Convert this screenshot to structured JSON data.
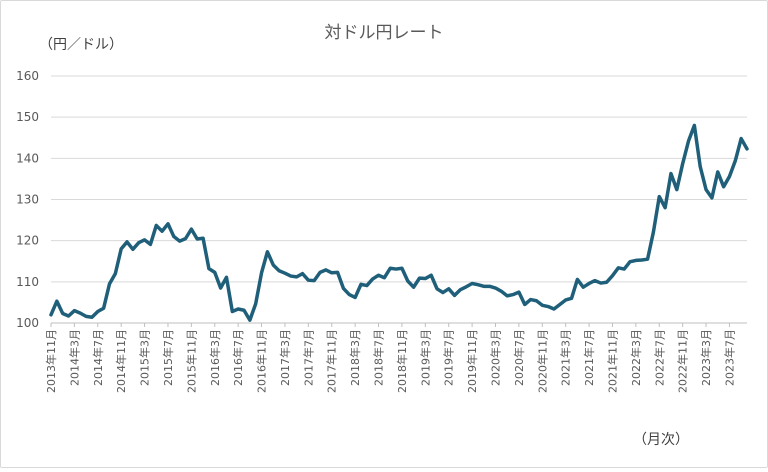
{
  "chart_data": {
    "type": "line",
    "title": "対ドル円レート",
    "ylabel": "（円／ドル）",
    "xlabel": "（月次）",
    "ylim": [
      100,
      160
    ],
    "yticks": [
      100,
      110,
      120,
      130,
      140,
      150,
      160
    ],
    "grid": true,
    "legend": "none",
    "line_color": "#1f5f7a",
    "x_tick_labels": [
      "2013年11月",
      "2014年3月",
      "2014年7月",
      "2014年11月",
      "2015年3月",
      "2015年7月",
      "2015年11月",
      "2016年3月",
      "2016年7月",
      "2016年11月",
      "2017年3月",
      "2017年7月",
      "2017年11月",
      "2018年3月",
      "2018年7月",
      "2018年11月",
      "2019年3月",
      "2019年7月",
      "2019年11月",
      "2020年3月",
      "2020年7月",
      "2020年11月",
      "2021年3月",
      "2021年7月",
      "2021年11月",
      "2022年3月",
      "2022年7月",
      "2022年11月",
      "2023年3月",
      "2023年7月"
    ],
    "series": [
      {
        "values": [
          102.0,
          105.3,
          102.3,
          101.7,
          103.0,
          102.4,
          101.6,
          101.4,
          102.8,
          103.6,
          109.5,
          112.0,
          118.0,
          119.7,
          117.9,
          119.5,
          120.2,
          119.1,
          123.7,
          122.3,
          124.1,
          121.0,
          119.9,
          120.5,
          122.8,
          120.4,
          120.6,
          113.2,
          112.3,
          108.5,
          111.1,
          102.8,
          103.4,
          103.1,
          100.7,
          104.7,
          112.2,
          117.3,
          114.1,
          112.7,
          112.1,
          111.4,
          111.2,
          112.0,
          110.4,
          110.3,
          112.3,
          112.9,
          112.2,
          112.3,
          108.4,
          106.9,
          106.2,
          109.4,
          109.1,
          110.7,
          111.6,
          111.0,
          113.3,
          113.1,
          113.3,
          110.2,
          108.7,
          110.9,
          110.8,
          111.6,
          108.3,
          107.4,
          108.3,
          106.7,
          108.1,
          108.8,
          109.6,
          109.3,
          108.9,
          108.9,
          108.5,
          107.7,
          106.6,
          106.9,
          107.5,
          104.5,
          105.7,
          105.4,
          104.3,
          104.0,
          103.4,
          104.5,
          105.6,
          106.0,
          110.6,
          108.7,
          109.6,
          110.3,
          109.7,
          109.9,
          111.5,
          113.4,
          113.1,
          114.9,
          115.2,
          115.3,
          115.5,
          122.1,
          130.7,
          128.0,
          136.3,
          132.4,
          138.7,
          144.2,
          148.0,
          138.0,
          132.4,
          130.4,
          136.7,
          133.1,
          135.6,
          139.4,
          144.8,
          142.3
        ]
      }
    ]
  }
}
